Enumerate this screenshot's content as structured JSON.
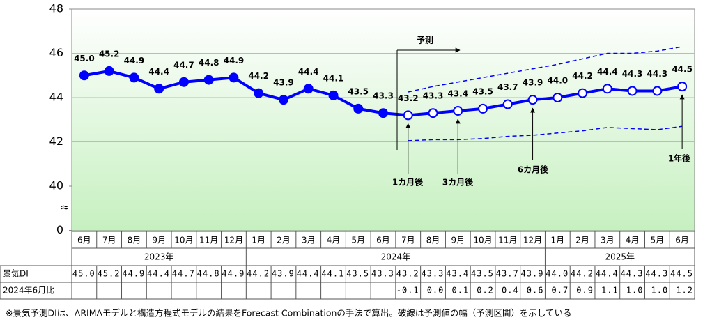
{
  "chart_data": {
    "type": "line",
    "categories": [
      "6月",
      "7月",
      "8月",
      "9月",
      "10月",
      "11月",
      "12月",
      "1月",
      "2月",
      "3月",
      "4月",
      "5月",
      "6月",
      "7月",
      "8月",
      "9月",
      "10月",
      "11月",
      "12月",
      "1月",
      "2月",
      "3月",
      "4月",
      "5月",
      "6月"
    ],
    "years": [
      "2023年",
      "2024年",
      "2025年"
    ],
    "ylim": [
      40,
      48
    ],
    "yticks": [
      0,
      40,
      42,
      44,
      46,
      48
    ],
    "axis_break": true,
    "grid": true,
    "series": [
      {
        "color": "#0000ff",
        "marker": "filled",
        "values": [
          45.0,
          45.2,
          44.9,
          44.4,
          44.7,
          44.8,
          44.9,
          44.2,
          43.9,
          44.4,
          44.1,
          43.5,
          43.3,
          null,
          null,
          null,
          null,
          null,
          null,
          null,
          null,
          null,
          null,
          null,
          null
        ],
        "value_labels": [
          "45.0",
          "45.2",
          "44.9",
          "44.4",
          "44.7",
          "44.8",
          "44.9",
          "44.2",
          "43.9",
          "44.4",
          "44.1",
          "43.5",
          "43.3",
          null,
          null,
          null,
          null,
          null,
          null,
          null,
          null,
          null,
          null,
          null,
          null
        ]
      },
      {
        "color": "#0000ff",
        "marker": "hollow",
        "values": [
          null,
          null,
          null,
          null,
          null,
          null,
          null,
          null,
          null,
          null,
          null,
          null,
          null,
          43.2,
          43.3,
          43.4,
          43.5,
          43.7,
          43.9,
          44.0,
          44.2,
          44.4,
          44.3,
          44.3,
          44.5
        ],
        "value_labels": [
          null,
          null,
          null,
          null,
          null,
          null,
          null,
          null,
          null,
          null,
          null,
          null,
          null,
          "43.2",
          "43.3",
          "43.4",
          "43.5",
          "43.7",
          "43.9",
          "44.0",
          "44.2",
          "44.4",
          "44.3",
          "44.3",
          "44.5"
        ]
      },
      {
        "color": "#0000ff",
        "style": "dashed",
        "values": [
          null,
          null,
          null,
          null,
          null,
          null,
          null,
          null,
          null,
          null,
          null,
          null,
          null,
          44.25,
          44.5,
          44.7,
          44.9,
          45.1,
          45.3,
          45.5,
          45.75,
          46.0,
          46.0,
          46.1,
          46.3
        ]
      },
      {
        "color": "#0000ff",
        "style": "dashed",
        "values": [
          null,
          null,
          null,
          null,
          null,
          null,
          null,
          null,
          null,
          null,
          null,
          null,
          null,
          42.05,
          42.1,
          42.1,
          42.15,
          42.25,
          42.3,
          42.4,
          42.5,
          42.65,
          42.6,
          42.55,
          42.7
        ]
      }
    ],
    "annotations": {
      "forecast": "予測",
      "horizons": [
        "1カ月後",
        "3カ月後",
        "6カ月後",
        "1年後"
      ]
    }
  },
  "table": {
    "row_labels": [
      "景気DI",
      "2024年6月比"
    ],
    "rows": [
      [
        "45.0",
        "45.2",
        "44.9",
        "44.4",
        "44.7",
        "44.8",
        "44.9",
        "44.2",
        "43.9",
        "44.4",
        "44.1",
        "43.5",
        "43.3",
        "43.2",
        "43.3",
        "43.4",
        "43.5",
        "43.7",
        "43.9",
        "44.0",
        "44.2",
        "44.4",
        "44.3",
        "44.3",
        "44.5"
      ],
      [
        null,
        null,
        null,
        null,
        null,
        null,
        null,
        null,
        null,
        null,
        null,
        null,
        null,
        "-0.1",
        "0.0",
        "0.1",
        "0.2",
        "0.4",
        "0.6",
        "0.7",
        "0.9",
        "1.1",
        "1.0",
        "1.0",
        "1.2"
      ]
    ]
  },
  "footnote": "※景気予測DIは、ARIMAモデルと構造方程式モデルの結果をForecast Combinationの手法で算出。破線は予測値の幅（予測区間）を示している"
}
